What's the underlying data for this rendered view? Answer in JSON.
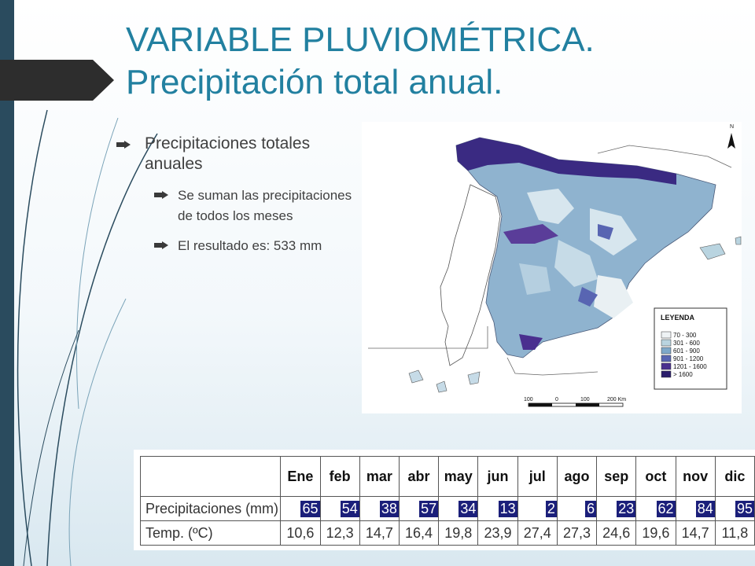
{
  "title": {
    "line1": "VARIABLE PLUVIOMÉTRICA.",
    "line2": "Precipitación total anual."
  },
  "bullets": {
    "main": "Precipitaciones totales anuales",
    "sub": [
      "Se suman  las precipitaciones  de todos los meses",
      "El  resultado  es: 533 mm"
    ]
  },
  "map": {
    "north_label": "N",
    "legend_title": "LEYENDA",
    "legend": [
      {
        "label": "70 - 300",
        "color": "#eef2f4"
      },
      {
        "label": "301 - 600",
        "color": "#b9d4e0"
      },
      {
        "label": "601 - 900",
        "color": "#7ea8c9"
      },
      {
        "label": "901 - 1200",
        "color": "#5865b2"
      },
      {
        "label": "1201 - 1600",
        "color": "#4a2f8f"
      },
      {
        "label": "> 1600",
        "color": "#2a1c6b"
      }
    ],
    "scale": [
      "100",
      "0",
      "100",
      "200 Km"
    ]
  },
  "table": {
    "months": [
      "Ene",
      "feb",
      "mar",
      "abr",
      "may",
      "jun",
      "jul",
      "ago",
      "sep",
      "oct",
      "nov",
      "dic"
    ],
    "precip_label": "Precipitaciones (mm)",
    "precip": [
      "65",
      "54",
      "38",
      "57",
      "34",
      "13",
      "2",
      "6",
      "23",
      "62",
      "84",
      "95"
    ],
    "temp_label": "Temp.  (ºC)",
    "temp": [
      "10,6",
      "12,3",
      "14,7",
      "16,4",
      "19,8",
      "23,9",
      "27,4",
      "27,3",
      "24,6",
      "19,6",
      "14,7",
      "11,8"
    ]
  },
  "colors": {
    "title": "#2280a0",
    "dark_band": "#2a4b5e",
    "cell_highlight": "#1b1f7a"
  }
}
